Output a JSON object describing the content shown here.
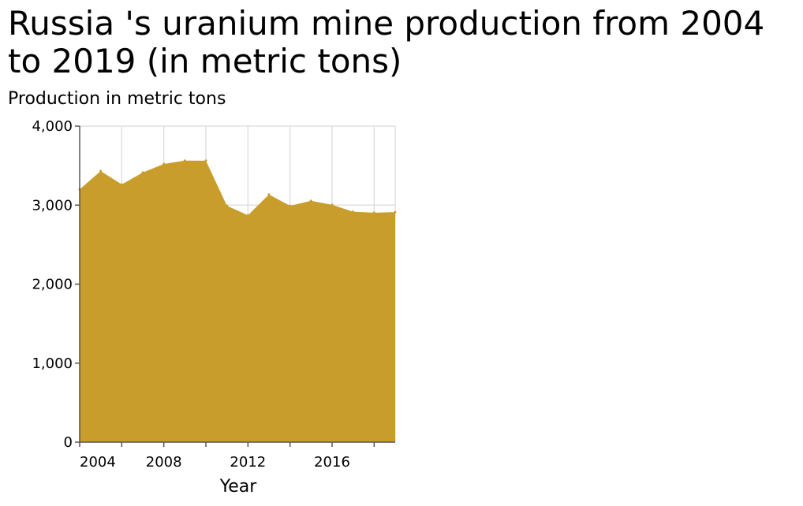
{
  "chart_data": {
    "type": "area",
    "title": "Russia 's uranium mine production from 2004 to 2019 (in metric tons)",
    "xlabel": "Year",
    "ylabel": "Production in metric tons",
    "x": [
      2004,
      2005,
      2006,
      2007,
      2008,
      2009,
      2010,
      2011,
      2012,
      2013,
      2014,
      2015,
      2016,
      2017,
      2018,
      2019
    ],
    "values": [
      3200,
      3431,
      3262,
      3413,
      3521,
      3564,
      3562,
      2993,
      2872,
      3135,
      2991,
      3055,
      3004,
      2917,
      2904,
      2911
    ],
    "xlim": [
      2004,
      2019
    ],
    "ylim": [
      0,
      4000
    ],
    "x_ticks": [
      2004,
      2008,
      2012,
      2016
    ],
    "x_tick_labels": [
      "2004",
      "2008",
      "2012",
      "2016"
    ],
    "y_ticks": [
      0,
      1000,
      2000,
      3000,
      4000
    ],
    "y_tick_labels": [
      "0",
      "1,000",
      "2,000",
      "3,000",
      "4,000"
    ],
    "grid": true,
    "fill_color": "#c89d2b",
    "grid_color": "#d9d9d9"
  }
}
